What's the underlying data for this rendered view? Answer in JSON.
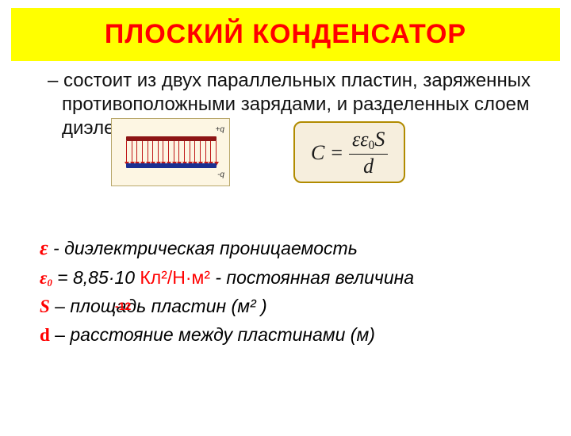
{
  "title": "ПЛОСКИЙ  КОНДЕНСАТОР",
  "paragraph": "– состоит  из двух параллельных пластин, заряженных противоположными зарядами, и разделенных слоем диэлектрика.",
  "capacitor_diagram": {
    "bg_color": "#fdf6e3",
    "border_color": "#b9a86c",
    "top_plate_color": "#8d1515",
    "bottom_plate_color": "#1b2f91",
    "field_line_color": "#c01818",
    "field_line_count": 18,
    "label_top": "+q",
    "label_bottom": "-q"
  },
  "formula_box": {
    "bg_color": "#f6eedd",
    "border_color": "#b18b00",
    "lhs": "C",
    "eq": "=",
    "num_pre": "εε",
    "num_sub": "0",
    "num_post": "S",
    "den": "d"
  },
  "definitions": {
    "eps": {
      "symbol": "ε",
      "text": " - диэлектрическая проницаемость"
    },
    "eps0": {
      "symbol_main": "ε",
      "symbol_sub": "0",
      "eq": " = 8,85·10",
      "exponent": "-12",
      "units": "   Кл²/Н·м²",
      "text": " - постоянная величина"
    },
    "S": {
      "symbol": "S",
      "dash": " – ",
      "text": "площадь пластин (м² )"
    },
    "d": {
      "symbol": "d",
      "dash": " – ",
      "text": "расстояние между пластинами (м)"
    }
  },
  "colors": {
    "title_bg": "#ffff00",
    "title_fg": "#ff0000",
    "text": "#111111",
    "accent_red": "#ff0000"
  }
}
